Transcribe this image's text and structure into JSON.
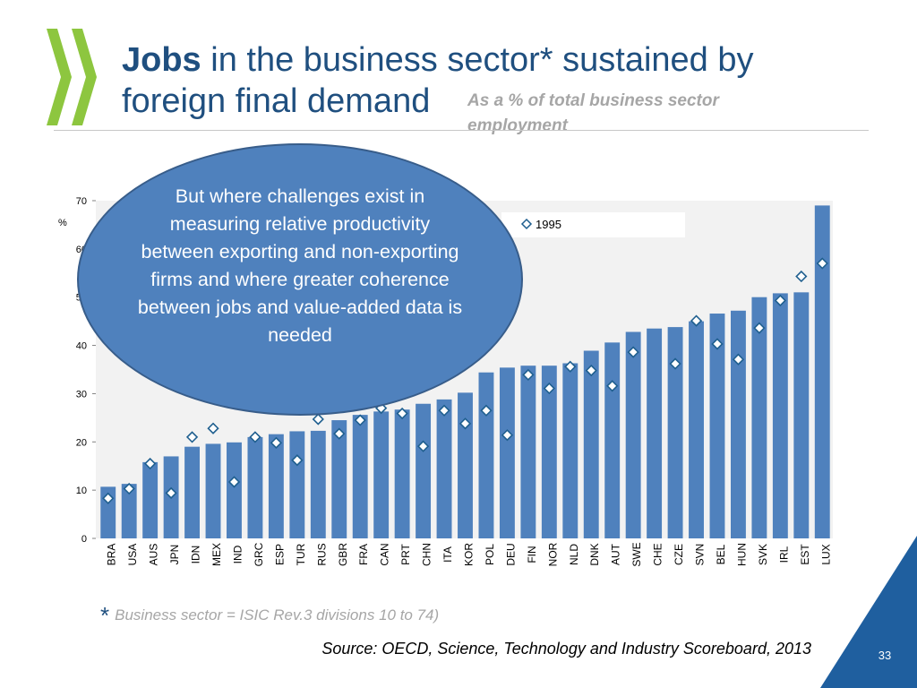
{
  "slide": {
    "title_bold": "Jobs",
    "title_rest_line1": " in the business sector* sustained by",
    "title_line2": "foreign final demand",
    "subtitle": "As a % of total business sector employment",
    "footnote_star": "*",
    "footnote": "Business sector = ISIC Rev.3 divisions 10 to 74)",
    "source": "Source: OECD, Science, Technology and Industry Scoreboard, 2013",
    "page_number": "33",
    "callout": "But where challenges exist in measuring relative productivity between exporting and non-exporting firms and where greater coherence between jobs and value-added data is needed"
  },
  "colors": {
    "title": "#1f4f7f",
    "bar": "#4f81bd",
    "marker_stroke": "#1f5f8f",
    "logo": "#8dc63f",
    "corner": "#1f5f9f"
  },
  "chart_data": {
    "type": "bar",
    "ylabel": "%",
    "ylim": [
      0,
      70
    ],
    "yticks": [
      0,
      10,
      20,
      30,
      40,
      50,
      60,
      70
    ],
    "grid": false,
    "legend": {
      "entries": [
        "1995"
      ],
      "placement": "top"
    },
    "categories": [
      "BRA",
      "USA",
      "AUS",
      "JPN",
      "IDN",
      "MEX",
      "IND",
      "GRC",
      "ESP",
      "TUR",
      "RUS",
      "GBR",
      "FRA",
      "CAN",
      "PRT",
      "CHN",
      "ITA",
      "KOR",
      "POL",
      "DEU",
      "FIN",
      "NOR",
      "NLD",
      "DNK",
      "AUT",
      "SWE",
      "CHE",
      "CZE",
      "SVN",
      "BEL",
      "HUN",
      "SVK",
      "IRL",
      "EST",
      "LUX"
    ],
    "series": [
      {
        "values": [
          10.7,
          11.3,
          15.8,
          17.0,
          19.0,
          19.6,
          19.9,
          21.0,
          21.6,
          22.2,
          22.3,
          24.5,
          25.6,
          26.3,
          26.7,
          27.9,
          28.8,
          30.2,
          34.4,
          35.4,
          35.8,
          35.8,
          36.3,
          38.9,
          40.6,
          42.8,
          43.5,
          43.8,
          45.0,
          46.6,
          47.2,
          50.0,
          50.8,
          51.0,
          69.0
        ]
      },
      {
        "name": "1995",
        "values": [
          8.3,
          10.3,
          15.5,
          9.4,
          21.0,
          22.8,
          11.7,
          21.0,
          19.8,
          16.2,
          24.7,
          21.7,
          24.5,
          27.0,
          25.9,
          19.1,
          26.5,
          23.8,
          26.5,
          21.4,
          33.9,
          31.1,
          35.6,
          34.8,
          31.6,
          38.6,
          null,
          36.2,
          45.1,
          40.3,
          37.1,
          43.6,
          49.3,
          54.3,
          57.0
        ]
      }
    ]
  }
}
